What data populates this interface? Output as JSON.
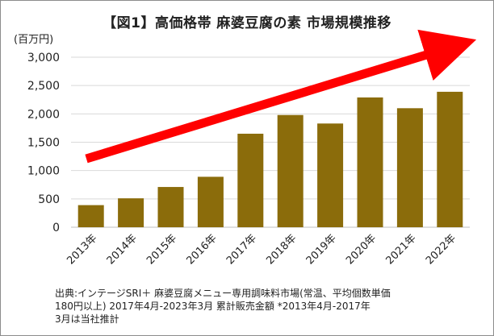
{
  "chart_data": {
    "type": "bar",
    "title": "【図1】高価格帯 麻婆豆腐の素 市場規模推移",
    "unit_label": "(百万円)",
    "categories": [
      "2013年",
      "2014年",
      "2015年",
      "2016年",
      "2017年",
      "2018年",
      "2019年",
      "2020年",
      "2021年",
      "2022年"
    ],
    "values": [
      390,
      510,
      710,
      890,
      1650,
      1980,
      1830,
      2290,
      2100,
      2390
    ],
    "yticks": [
      "0",
      "500",
      "1,000",
      "1,500",
      "2,000",
      "2,500",
      "3,000"
    ],
    "ytick_values": [
      0,
      500,
      1000,
      1500,
      2000,
      2500,
      3000
    ],
    "ylim": [
      0,
      3000
    ],
    "grid": true,
    "bar_color": "#8b6c0b",
    "trend_arrow_color": "#ff0000"
  },
  "source": {
    "line1": "出典:インテージSRI＋ 麻婆豆腐メニュー専用調味料市場(常温、平均個数単価",
    "line2": "180円以上) 2017年4月-2023年3月 累計販売金額 *2013年4月-2017年",
    "line3": "3月は当社推計"
  }
}
